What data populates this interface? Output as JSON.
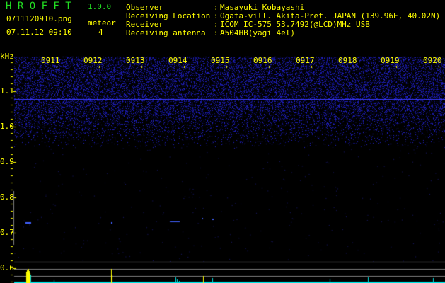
{
  "app": {
    "name": "H R O F F T",
    "version": "1.0.0"
  },
  "file": {
    "name": "0711120910.png",
    "datetime": "07.11.12 09:10"
  },
  "meteor": {
    "label": "meteor",
    "count": "4"
  },
  "info": [
    {
      "label": "Observer",
      "value": "Masayuki Kobayashi"
    },
    {
      "label": "Receiving Location",
      "value": "Ogata-vill. Akita-Pref. JAPAN (139.96E, 40.02N)"
    },
    {
      "label": "Receiver",
      "value": "ICOM IC-575 53.7492(@LCD)MHz USB"
    },
    {
      "label": "Receiving antenna",
      "value": "A504HB(yagi 4el)"
    }
  ],
  "spectrogram": {
    "y_unit": "kHz",
    "y_ticks": [
      "1.1",
      "1.0",
      "0.9",
      "0.8",
      "0.7",
      "0.6"
    ],
    "x_ticks": [
      "0911",
      "0912",
      "0913",
      "0914",
      "0915",
      "0916",
      "0917",
      "0918",
      "0919",
      "0920"
    ],
    "colors": {
      "label": "#ffff00",
      "title": "#22dd22",
      "noise": "#2020c0",
      "carrier": "#3a3aff",
      "bar_meteor": "#ffff00",
      "bar_noise": "#00e0e0",
      "grid": "#808080"
    }
  }
}
